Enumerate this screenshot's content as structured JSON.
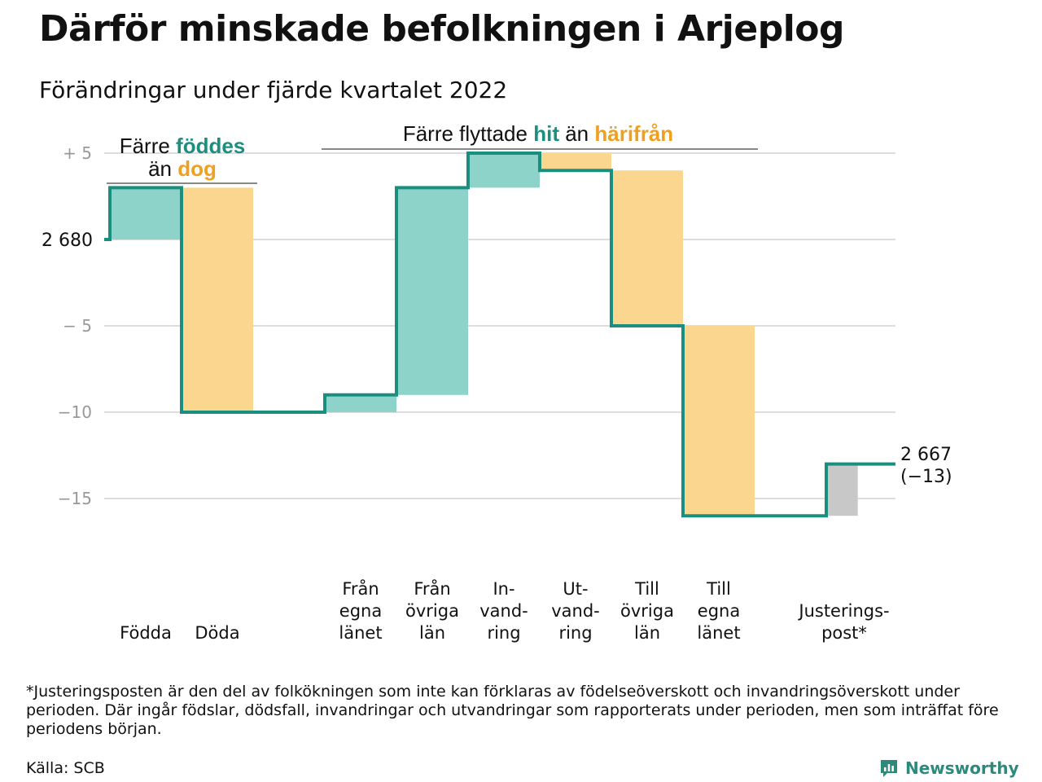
{
  "title": "Därför minskade befolkningen i Arjeplog",
  "subtitle": "Förändringar under fjärde kvartalet 2022",
  "footnote": "*Justeringsposten är den del av folkökningen som inte kan förklaras av födelseöverskott och invandringsöverskott under perioden. Där ingår födslar, dödsfall, invandringar och utvandringar som rapporterats under perioden, men som inträffat före periodens början.",
  "source": "Källa: SCB",
  "brand": "Newsworthy",
  "colors": {
    "line": "#1b8f7f",
    "positive": "#8dd3ca",
    "negative": "#fad68e",
    "adjustment": "#c8c8c8",
    "teal_text": "#1b8f7f",
    "orange_text": "#f0a021",
    "grid": "#dddddd",
    "tick_text": "#999999"
  },
  "chart_data": {
    "type": "waterfall",
    "start": {
      "label": "2 680",
      "value": 2680
    },
    "end": {
      "label": "2 667",
      "change_label": "(−13)",
      "value": 2667
    },
    "y_axis": {
      "range": [
        -18,
        5
      ],
      "ticks": [
        5,
        0,
        -5,
        -10,
        -15
      ],
      "tick_labels": [
        "+ 5",
        "",
        "− 5",
        "−10",
        "−15"
      ],
      "grid": true
    },
    "steps": [
      {
        "label": "Födda",
        "value": 3,
        "kind": "positive"
      },
      {
        "label": "Döda",
        "value": -13,
        "kind": "negative"
      },
      {
        "label": "Från egna länet",
        "value": 1,
        "kind": "positive"
      },
      {
        "label": "Från övriga län",
        "value": 12,
        "kind": "positive"
      },
      {
        "label": "In-vandring",
        "value": 2,
        "kind": "positive"
      },
      {
        "label": "Ut-vandring",
        "value": -1,
        "kind": "negative"
      },
      {
        "label": "Till övriga län",
        "value": -9,
        "kind": "negative"
      },
      {
        "label": "Till egna länet",
        "value": -11,
        "kind": "negative"
      },
      {
        "label": "Justeringspost*",
        "value": 3,
        "kind": "adjustment"
      }
    ],
    "category_labels": [
      {
        "lines": [
          "Födda"
        ]
      },
      {
        "lines": [
          "Döda"
        ]
      },
      {
        "lines": [
          "Från",
          "egna",
          "länet"
        ]
      },
      {
        "lines": [
          "Från",
          "övriga",
          "län"
        ]
      },
      {
        "lines": [
          "In-",
          "vand-",
          "ring"
        ]
      },
      {
        "lines": [
          "Ut-",
          "vand-",
          "ring"
        ]
      },
      {
        "lines": [
          "Till",
          "övriga",
          "län"
        ]
      },
      {
        "lines": [
          "Till",
          "egna",
          "länet"
        ]
      },
      {
        "lines": [
          "Justerings-",
          "post*"
        ]
      }
    ],
    "annotations": [
      {
        "parts": [
          {
            "text": "Färre ",
            "color": "plain"
          },
          {
            "text": "föddes",
            "color": "teal"
          }
        ]
      },
      {
        "parts": [
          {
            "text": "än ",
            "color": "plain"
          },
          {
            "text": "dog",
            "color": "orange"
          }
        ]
      },
      {
        "parts": [
          {
            "text": "Färre flyttade ",
            "color": "plain"
          },
          {
            "text": "hit",
            "color": "teal"
          },
          {
            "text": " än ",
            "color": "plain"
          },
          {
            "text": "härifrån",
            "color": "orange"
          }
        ]
      }
    ]
  }
}
